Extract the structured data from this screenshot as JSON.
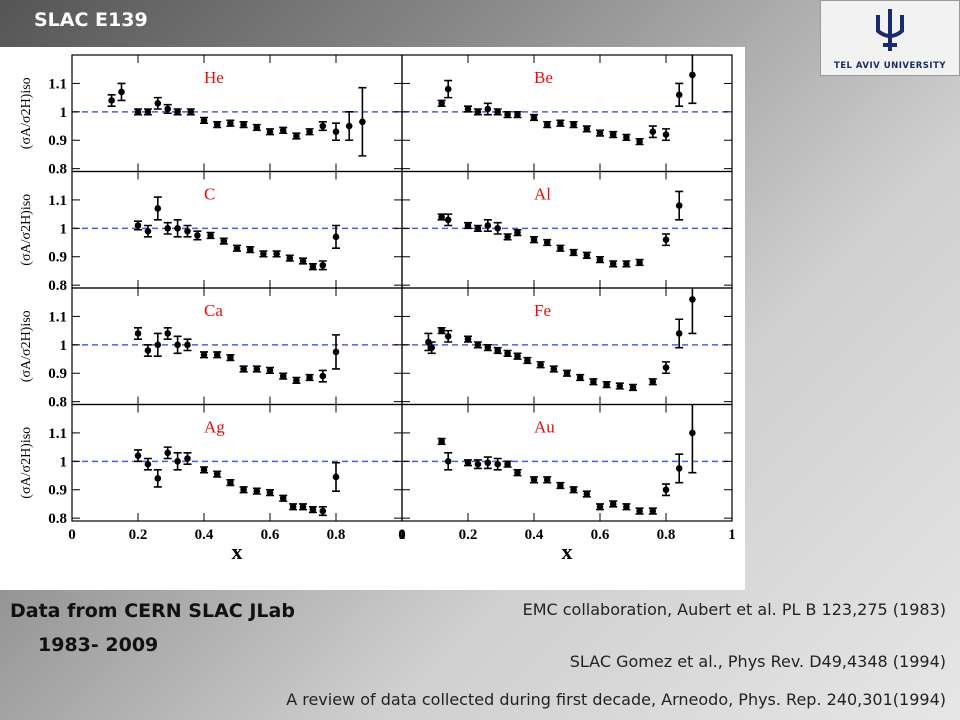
{
  "slide": {
    "title": "SLAC  E139",
    "logo_text": "TEL AVIV UNIVERSITY",
    "left_note": [
      "Data from CERN  SLAC  JLab",
      "1983- 2009"
    ],
    "references": [
      "EMC collaboration, Aubert et al.  PL B 123,275 (1983)",
      "SLAC   Gomez et al., Phys Rev. D49,4348 (1994)",
      "A review of data collected during first decade,  Arneodo, Phys. Rep. 240,301(1994)"
    ]
  },
  "chart_data": [
    {
      "type": "errorbar",
      "label": "He",
      "ylabel": "(σA/σ2H)iso",
      "color": "#000000",
      "line_color": "#4a5ee0",
      "hline": 1,
      "xlim": [
        0,
        1
      ],
      "ylim": [
        0.79,
        1.2
      ],
      "xticks": [
        0,
        0.2,
        0.4,
        0.6,
        0.8,
        1
      ],
      "yticks": [
        0.8,
        0.9,
        1,
        1.1
      ],
      "x": [
        0.12,
        0.15,
        0.2,
        0.23,
        0.26,
        0.29,
        0.32,
        0.36,
        0.4,
        0.44,
        0.48,
        0.52,
        0.56,
        0.6,
        0.64,
        0.68,
        0.72,
        0.76,
        0.8,
        0.84,
        0.88
      ],
      "values": [
        1.04,
        1.07,
        1.0,
        1.0,
        1.03,
        1.01,
        1.0,
        1.0,
        0.97,
        0.955,
        0.96,
        0.955,
        0.945,
        0.93,
        0.935,
        0.915,
        0.93,
        0.95,
        0.93,
        0.95,
        0.965
      ],
      "errors": [
        0.02,
        0.03,
        0.01,
        0.01,
        0.02,
        0.015,
        0.01,
        0.01,
        0.01,
        0.01,
        0.01,
        0.01,
        0.01,
        0.01,
        0.01,
        0.01,
        0.01,
        0.015,
        0.03,
        0.05,
        0.12
      ]
    },
    {
      "type": "errorbar",
      "label": "Be",
      "color": "#000000",
      "line_color": "#4a5ee0",
      "hline": 1,
      "xlim": [
        0,
        1
      ],
      "ylim": [
        0.79,
        1.2
      ],
      "xticks": [
        0,
        0.2,
        0.4,
        0.6,
        0.8,
        1
      ],
      "yticks": [
        0.8,
        0.9,
        1,
        1.1
      ],
      "x": [
        0.12,
        0.14,
        0.2,
        0.23,
        0.26,
        0.29,
        0.32,
        0.35,
        0.4,
        0.44,
        0.48,
        0.52,
        0.56,
        0.6,
        0.64,
        0.68,
        0.72,
        0.76,
        0.8,
        0.84,
        0.88
      ],
      "values": [
        1.03,
        1.08,
        1.01,
        1.0,
        1.01,
        1.0,
        0.99,
        0.99,
        0.98,
        0.955,
        0.96,
        0.955,
        0.94,
        0.925,
        0.92,
        0.91,
        0.895,
        0.93,
        0.92,
        1.06,
        1.13
      ],
      "errors": [
        0.01,
        0.03,
        0.01,
        0.01,
        0.02,
        0.01,
        0.01,
        0.01,
        0.01,
        0.01,
        0.01,
        0.01,
        0.01,
        0.01,
        0.01,
        0.01,
        0.01,
        0.02,
        0.02,
        0.04,
        0.1
      ]
    },
    {
      "type": "errorbar",
      "label": "C",
      "ylabel": "(σA/σ2H)iso",
      "color": "#000000",
      "line_color": "#4a5ee0",
      "hline": 1,
      "xlim": [
        0,
        1
      ],
      "ylim": [
        0.79,
        1.2
      ],
      "xticks": [
        0,
        0.2,
        0.4,
        0.6,
        0.8,
        1
      ],
      "yticks": [
        0.8,
        0.9,
        1,
        1.1
      ],
      "x": [
        0.2,
        0.23,
        0.26,
        0.29,
        0.32,
        0.35,
        0.38,
        0.42,
        0.46,
        0.5,
        0.54,
        0.58,
        0.62,
        0.66,
        0.7,
        0.73,
        0.76,
        0.8
      ],
      "values": [
        1.01,
        0.99,
        1.07,
        1.0,
        1.0,
        0.99,
        0.975,
        0.975,
        0.955,
        0.93,
        0.925,
        0.91,
        0.91,
        0.895,
        0.885,
        0.865,
        0.87,
        0.97
      ],
      "errors": [
        0.015,
        0.02,
        0.04,
        0.02,
        0.03,
        0.02,
        0.015,
        0.01,
        0.01,
        0.01,
        0.01,
        0.01,
        0.01,
        0.01,
        0.01,
        0.01,
        0.015,
        0.04
      ]
    },
    {
      "type": "errorbar",
      "label": "Al",
      "color": "#000000",
      "line_color": "#4a5ee0",
      "hline": 1,
      "xlim": [
        0,
        1
      ],
      "ylim": [
        0.79,
        1.2
      ],
      "xticks": [
        0,
        0.2,
        0.4,
        0.6,
        0.8,
        1
      ],
      "yticks": [
        0.8,
        0.9,
        1,
        1.1
      ],
      "x": [
        0.12,
        0.14,
        0.2,
        0.23,
        0.26,
        0.29,
        0.32,
        0.35,
        0.4,
        0.44,
        0.48,
        0.52,
        0.56,
        0.6,
        0.64,
        0.68,
        0.72,
        0.8,
        0.84
      ],
      "values": [
        1.04,
        1.03,
        1.01,
        1.0,
        1.01,
        1.0,
        0.97,
        0.985,
        0.96,
        0.95,
        0.93,
        0.915,
        0.905,
        0.89,
        0.875,
        0.875,
        0.88,
        0.96,
        1.08
      ],
      "errors": [
        0.01,
        0.02,
        0.01,
        0.01,
        0.02,
        0.02,
        0.01,
        0.01,
        0.01,
        0.01,
        0.01,
        0.01,
        0.01,
        0.01,
        0.01,
        0.01,
        0.01,
        0.02,
        0.05
      ]
    },
    {
      "type": "errorbar",
      "label": "Ca",
      "ylabel": "(σA/σ2H)iso",
      "color": "#000000",
      "line_color": "#4a5ee0",
      "hline": 1,
      "xlim": [
        0,
        1
      ],
      "ylim": [
        0.79,
        1.2
      ],
      "xticks": [
        0,
        0.2,
        0.4,
        0.6,
        0.8,
        1
      ],
      "yticks": [
        0.8,
        0.9,
        1,
        1.1
      ],
      "x": [
        0.2,
        0.23,
        0.26,
        0.29,
        0.32,
        0.35,
        0.4,
        0.44,
        0.48,
        0.52,
        0.56,
        0.6,
        0.64,
        0.68,
        0.72,
        0.76,
        0.8
      ],
      "values": [
        1.04,
        0.98,
        1.0,
        1.04,
        1.0,
        1.0,
        0.965,
        0.965,
        0.955,
        0.915,
        0.915,
        0.91,
        0.89,
        0.875,
        0.885,
        0.89,
        0.975
      ],
      "errors": [
        0.02,
        0.02,
        0.04,
        0.02,
        0.03,
        0.02,
        0.01,
        0.01,
        0.01,
        0.01,
        0.01,
        0.01,
        0.01,
        0.01,
        0.01,
        0.02,
        0.06
      ]
    },
    {
      "type": "errorbar",
      "label": "Fe",
      "color": "#000000",
      "line_color": "#4a5ee0",
      "hline": 1,
      "xlim": [
        0,
        1
      ],
      "ylim": [
        0.79,
        1.2
      ],
      "xticks": [
        0,
        0.2,
        0.4,
        0.6,
        0.8,
        1
      ],
      "yticks": [
        0.8,
        0.9,
        1,
        1.1
      ],
      "x": [
        0.08,
        0.09,
        0.12,
        0.14,
        0.2,
        0.23,
        0.26,
        0.29,
        0.32,
        0.35,
        0.38,
        0.42,
        0.46,
        0.5,
        0.54,
        0.58,
        0.62,
        0.66,
        0.7,
        0.76,
        0.8,
        0.84,
        0.88
      ],
      "values": [
        1.01,
        0.99,
        1.05,
        1.03,
        1.02,
        1.0,
        0.99,
        0.98,
        0.97,
        0.96,
        0.945,
        0.93,
        0.915,
        0.9,
        0.885,
        0.87,
        0.86,
        0.855,
        0.85,
        0.87,
        0.92,
        1.04,
        1.16
      ],
      "errors": [
        0.03,
        0.02,
        0.01,
        0.02,
        0.01,
        0.01,
        0.01,
        0.01,
        0.01,
        0.01,
        0.01,
        0.01,
        0.01,
        0.01,
        0.01,
        0.01,
        0.01,
        0.01,
        0.01,
        0.01,
        0.02,
        0.05,
        0.12
      ]
    },
    {
      "type": "errorbar",
      "label": "Ag",
      "ylabel": "(σA/σ2H)iso",
      "xlabel": "x",
      "color": "#000000",
      "line_color": "#4a5ee0",
      "hline": 1,
      "xlim": [
        0,
        1
      ],
      "ylim": [
        0.79,
        1.2
      ],
      "xticks": [
        0,
        0.2,
        0.4,
        0.6,
        0.8,
        1
      ],
      "yticks": [
        0.8,
        0.9,
        1,
        1.1
      ],
      "x": [
        0.2,
        0.23,
        0.26,
        0.29,
        0.32,
        0.35,
        0.4,
        0.44,
        0.48,
        0.52,
        0.56,
        0.6,
        0.64,
        0.67,
        0.7,
        0.73,
        0.76,
        0.8
      ],
      "values": [
        1.02,
        0.99,
        0.94,
        1.03,
        1.0,
        1.01,
        0.97,
        0.955,
        0.925,
        0.9,
        0.895,
        0.89,
        0.87,
        0.84,
        0.84,
        0.83,
        0.825,
        0.945
      ],
      "errors": [
        0.02,
        0.02,
        0.03,
        0.02,
        0.03,
        0.02,
        0.01,
        0.01,
        0.01,
        0.01,
        0.01,
        0.01,
        0.01,
        0.01,
        0.01,
        0.01,
        0.015,
        0.05
      ]
    },
    {
      "type": "errorbar",
      "label": "Au",
      "xlabel": "x",
      "color": "#000000",
      "line_color": "#4a5ee0",
      "hline": 1,
      "xlim": [
        0,
        1
      ],
      "ylim": [
        0.79,
        1.2
      ],
      "xticks": [
        0,
        0.2,
        0.4,
        0.6,
        0.8,
        1
      ],
      "yticks": [
        0.8,
        0.9,
        1,
        1.1
      ],
      "x": [
        0.12,
        0.14,
        0.2,
        0.23,
        0.26,
        0.29,
        0.32,
        0.35,
        0.4,
        0.44,
        0.48,
        0.52,
        0.56,
        0.6,
        0.64,
        0.68,
        0.72,
        0.76,
        0.8,
        0.84,
        0.88
      ],
      "values": [
        1.07,
        1.0,
        0.995,
        0.99,
        0.995,
        0.99,
        0.99,
        0.96,
        0.935,
        0.935,
        0.915,
        0.9,
        0.885,
        0.84,
        0.85,
        0.84,
        0.825,
        0.825,
        0.9,
        0.975,
        1.1
      ],
      "errors": [
        0.01,
        0.03,
        0.01,
        0.015,
        0.02,
        0.02,
        0.01,
        0.01,
        0.01,
        0.01,
        0.01,
        0.01,
        0.01,
        0.01,
        0.01,
        0.01,
        0.01,
        0.01,
        0.02,
        0.05,
        0.14
      ]
    }
  ]
}
